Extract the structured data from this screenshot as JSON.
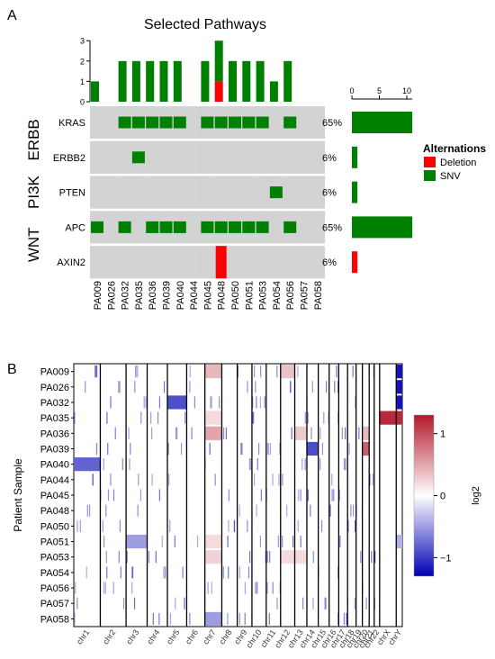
{
  "panel_a_label": "A",
  "panel_b_label": "B",
  "colors": {
    "background": "#ffffff",
    "cell_empty": "#d3d3d3",
    "snv": "#008000",
    "deletion": "#ff0000",
    "heat_high": "#b2182b",
    "heat_mid": "#ffffff",
    "heat_low": "#0000b4",
    "axis": "#000000"
  },
  "chart_data": [
    {
      "type": "bar",
      "id": "top-counts",
      "title": "Selected Pathways",
      "categories": [
        "PA009",
        "PA026",
        "PA032",
        "PA035",
        "PA036",
        "PA039",
        "PA040",
        "PA044",
        "PA045",
        "PA048",
        "PA050",
        "PA051",
        "PA053",
        "PA054",
        "PA056",
        "PA057",
        "PA058"
      ],
      "series": [
        {
          "name": "SNV",
          "values": [
            1,
            0,
            2,
            2,
            2,
            2,
            2,
            0,
            2,
            2,
            2,
            2,
            2,
            1,
            2,
            0,
            0
          ]
        },
        {
          "name": "Deletion",
          "values": [
            0,
            0,
            0,
            0,
            0,
            0,
            0,
            0,
            0,
            1,
            0,
            0,
            0,
            0,
            0,
            0,
            0
          ]
        }
      ],
      "yticks": [
        "0",
        "1",
        "2",
        "3"
      ],
      "ylim": [
        0,
        3
      ],
      "stacked": true
    },
    {
      "type": "heatmap",
      "id": "oncoprint",
      "groups": [
        {
          "name": "ERBB",
          "genes": [
            "KRAS",
            "ERBB2"
          ]
        },
        {
          "name": "PI3K",
          "genes": [
            "PTEN"
          ]
        },
        {
          "name": "WNT",
          "genes": [
            "APC",
            "AXIN2"
          ]
        }
      ],
      "genes": [
        "KRAS",
        "ERBB2",
        "PTEN",
        "APC",
        "AXIN2"
      ],
      "samples": [
        "PA009",
        "PA026",
        "PA032",
        "PA035",
        "PA036",
        "PA039",
        "PA040",
        "PA044",
        "PA045",
        "PA048",
        "PA050",
        "PA051",
        "PA053",
        "PA054",
        "PA056",
        "PA057",
        "PA058"
      ],
      "matrix": [
        [
          "",
          "",
          "SNV",
          "SNV",
          "SNV",
          "SNV",
          "SNV",
          "",
          "SNV",
          "SNV",
          "SNV",
          "SNV",
          "SNV",
          "",
          "SNV",
          "",
          ""
        ],
        [
          "",
          "",
          "",
          "SNV",
          "",
          "",
          "",
          "",
          "",
          "",
          "",
          "",
          "",
          "",
          "",
          "",
          ""
        ],
        [
          "",
          "",
          "",
          "",
          "",
          "",
          "",
          "",
          "",
          "",
          "",
          "",
          "",
          "SNV",
          "",
          "",
          ""
        ],
        [
          "SNV",
          "",
          "SNV",
          "",
          "SNV",
          "SNV",
          "SNV",
          "",
          "SNV",
          "SNV",
          "SNV",
          "SNV",
          "SNV",
          "",
          "SNV",
          "",
          ""
        ],
        [
          "",
          "",
          "",
          "",
          "",
          "",
          "",
          "",
          "",
          "Deletion",
          "",
          "",
          "",
          "",
          "",
          "",
          ""
        ]
      ],
      "percents": [
        "65%",
        "6%",
        "6%",
        "65%",
        "6%"
      ],
      "legend": {
        "title": "Alternations",
        "entries": [
          "Deletion",
          "SNV"
        ],
        "placement": "right"
      }
    },
    {
      "type": "bar",
      "id": "gene-counts",
      "orientation": "horizontal",
      "categories": [
        "KRAS",
        "ERBB2",
        "PTEN",
        "APC",
        "AXIN2"
      ],
      "series": [
        {
          "name": "SNV",
          "values": [
            11,
            1,
            1,
            11,
            0
          ]
        },
        {
          "name": "Deletion",
          "values": [
            0,
            0,
            0,
            0,
            1
          ]
        }
      ],
      "xticks": [
        "0",
        "5",
        "10"
      ],
      "xlim": [
        0,
        11
      ]
    },
    {
      "type": "heatmap",
      "id": "cnv",
      "ylabel": "Patient Sample",
      "samples": [
        "PA009",
        "PA026",
        "PA032",
        "PA035",
        "PA036",
        "PA039",
        "PA040",
        "PA044",
        "PA045",
        "PA048",
        "PA050",
        "PA051",
        "PA053",
        "PA054",
        "PA056",
        "PA057",
        "PA058"
      ],
      "chromosomes": [
        "chr1",
        "chr2",
        "chr3",
        "chr4",
        "chr5",
        "chr6",
        "chr7",
        "chr8",
        "chr9",
        "chr10",
        "chr11",
        "chr12",
        "chr13",
        "chr14",
        "chr15",
        "chr16",
        "chr17",
        "chr18",
        "chr19",
        "chr20",
        "chr21",
        "chr22",
        "chrX",
        "chrY"
      ],
      "chrom_lengths_mb": [
        249,
        242,
        198,
        190,
        181,
        171,
        159,
        145,
        138,
        134,
        135,
        133,
        114,
        107,
        102,
        90,
        83,
        80,
        59,
        64,
        47,
        51,
        156,
        57
      ],
      "colorbar": {
        "label": "log2",
        "ticks": [
          "1",
          "0",
          "−1"
        ],
        "range": [
          -1.3,
          1.3
        ]
      },
      "events": [
        {
          "sample": "PA009",
          "chrom": "chr7",
          "value": 0.4
        },
        {
          "sample": "PA009",
          "chrom": "chr12",
          "value": 0.35
        },
        {
          "sample": "PA009",
          "chrom": "chrY",
          "value": -1.2
        },
        {
          "sample": "PA026",
          "chrom": "chrY",
          "value": -1.2
        },
        {
          "sample": "PA032",
          "chrom": "chr5",
          "value": -0.9
        },
        {
          "sample": "PA032",
          "chrom": "chrY",
          "value": -1.2
        },
        {
          "sample": "PA035",
          "chrom": "chrX",
          "value": 1.2
        },
        {
          "sample": "PA035",
          "chrom": "chrY",
          "value": 1.2
        },
        {
          "sample": "PA035",
          "chrom": "chr7",
          "value": 0.2
        },
        {
          "sample": "PA036",
          "chrom": "chr7",
          "value": 0.5
        },
        {
          "sample": "PA036",
          "chrom": "chr13",
          "value": 0.3
        },
        {
          "sample": "PA036",
          "chrom": "chr20",
          "value": 0.4
        },
        {
          "sample": "PA039",
          "chrom": "chr14",
          "value": -0.9
        },
        {
          "sample": "PA039",
          "chrom": "chr20",
          "value": 0.9
        },
        {
          "sample": "PA040",
          "chrom": "chr1",
          "value": -0.8
        },
        {
          "sample": "PA051",
          "chrom": "chr7",
          "value": 0.2
        },
        {
          "sample": "PA051",
          "chrom": "chr3",
          "value": -0.5
        },
        {
          "sample": "PA051",
          "chrom": "chrY",
          "value": -0.4
        },
        {
          "sample": "PA053",
          "chrom": "chr7",
          "value": 0.25
        },
        {
          "sample": "PA053",
          "chrom": "chr12",
          "value": 0.2
        },
        {
          "sample": "PA053",
          "chrom": "chr13",
          "value": 0.2
        },
        {
          "sample": "PA058",
          "chrom": "chr7",
          "value": -0.5
        }
      ]
    }
  ]
}
